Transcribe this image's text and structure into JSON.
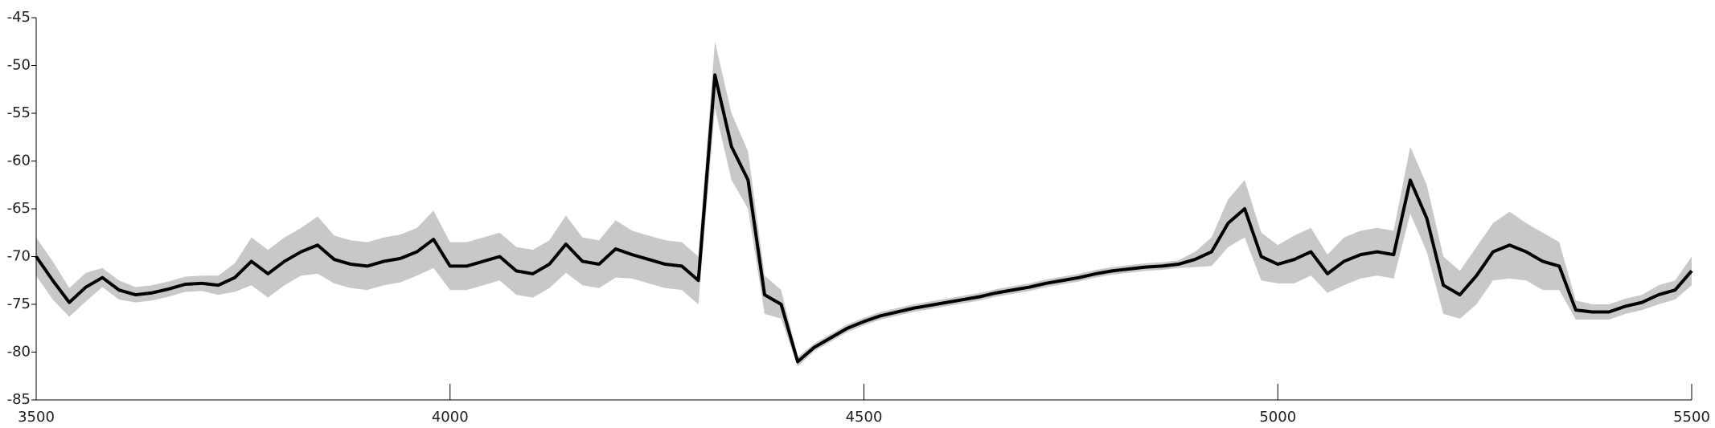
{
  "chart_data": {
    "type": "line",
    "x": [
      3500,
      3520,
      3540,
      3560,
      3580,
      3600,
      3620,
      3640,
      3660,
      3680,
      3700,
      3720,
      3740,
      3760,
      3780,
      3800,
      3820,
      3840,
      3860,
      3880,
      3900,
      3920,
      3940,
      3960,
      3980,
      4000,
      4020,
      4040,
      4060,
      4080,
      4100,
      4120,
      4140,
      4160,
      4180,
      4200,
      4220,
      4240,
      4260,
      4280,
      4300,
      4320,
      4340,
      4360,
      4380,
      4400,
      4420,
      4440,
      4460,
      4480,
      4500,
      4520,
      4540,
      4560,
      4580,
      4600,
      4620,
      4640,
      4660,
      4680,
      4700,
      4720,
      4740,
      4760,
      4780,
      4800,
      4820,
      4840,
      4860,
      4880,
      4900,
      4920,
      4940,
      4960,
      4980,
      5000,
      5020,
      5040,
      5060,
      5080,
      5100,
      5120,
      5140,
      5160,
      5180,
      5200,
      5220,
      5240,
      5260,
      5280,
      5300,
      5320,
      5340,
      5360,
      5380,
      5400,
      5420,
      5440,
      5460,
      5480,
      5500
    ],
    "series": [
      {
        "color": "#000000",
        "spread_color": "#c8c8c8",
        "values": [
          -70,
          -72.5,
          -74.8,
          -73.2,
          -72.2,
          -73.5,
          -74,
          -73.8,
          -73.4,
          -72.9,
          -72.8,
          -73,
          -72.2,
          -70.5,
          -71.8,
          -70.5,
          -69.5,
          -68.8,
          -70.3,
          -70.8,
          -71,
          -70.5,
          -70.2,
          -69.5,
          -68.2,
          -71,
          -71,
          -70.5,
          -70,
          -71.5,
          -71.8,
          -70.8,
          -68.7,
          -70.5,
          -70.8,
          -69.2,
          -69.8,
          -70.3,
          -70.8,
          -71,
          -72.5,
          -51,
          -58.5,
          -62,
          -74,
          -75,
          -81,
          -79.5,
          -78.5,
          -77.5,
          -76.8,
          -76.2,
          -75.8,
          -75.4,
          -75.1,
          -74.8,
          -74.5,
          -74.2,
          -73.8,
          -73.5,
          -73.2,
          -72.8,
          -72.5,
          -72.2,
          -71.8,
          -71.5,
          -71.3,
          -71.1,
          -71,
          -70.8,
          -70.3,
          -69.5,
          -66.5,
          -65,
          -70,
          -70.8,
          -70.3,
          -69.5,
          -71.8,
          -70.5,
          -69.8,
          -69.5,
          -69.8,
          -62,
          -66,
          -73,
          -74,
          -72,
          -69.5,
          -68.8,
          -69.5,
          -70.5,
          -71,
          -75.6,
          -75.8,
          -75.8,
          -75.2,
          -74.8,
          -74,
          -73.5,
          -71.5
        ],
        "spread": [
          2,
          2,
          1.5,
          1.5,
          1,
          1,
          0.8,
          0.8,
          0.8,
          0.8,
          0.8,
          1,
          1.5,
          2.5,
          2.5,
          2.5,
          2.5,
          3,
          2.5,
          2.5,
          2.5,
          2.5,
          2.5,
          2.5,
          3,
          2.5,
          2.5,
          2.5,
          2.5,
          2.5,
          2.5,
          2.5,
          3,
          2.5,
          2.5,
          3,
          2.5,
          2.5,
          2.5,
          2.5,
          2.5,
          3.5,
          3.5,
          3,
          2,
          1.5,
          0.5,
          0.4,
          0.4,
          0.4,
          0.4,
          0.4,
          0.4,
          0.4,
          0.4,
          0.4,
          0.4,
          0.4,
          0.4,
          0.4,
          0.4,
          0.4,
          0.4,
          0.4,
          0.4,
          0.4,
          0.4,
          0.4,
          0.4,
          0.4,
          0.8,
          1.5,
          2.5,
          3,
          2.5,
          2,
          2.5,
          2.5,
          2,
          2.5,
          2.5,
          2.5,
          2.5,
          3.5,
          3.5,
          3,
          2.5,
          3,
          3,
          3.5,
          3,
          3,
          2.5,
          1,
          0.8,
          0.8,
          0.8,
          0.8,
          1,
          1,
          1.5
        ]
      }
    ],
    "xlim": [
      3500,
      5500
    ],
    "xticks": [
      3500,
      4000,
      4500,
      5000,
      5500
    ],
    "ylim": [
      -85,
      -45
    ],
    "yticks": [
      -85,
      -80,
      -75,
      -70,
      -65,
      -60,
      -55,
      -50,
      -45
    ]
  }
}
